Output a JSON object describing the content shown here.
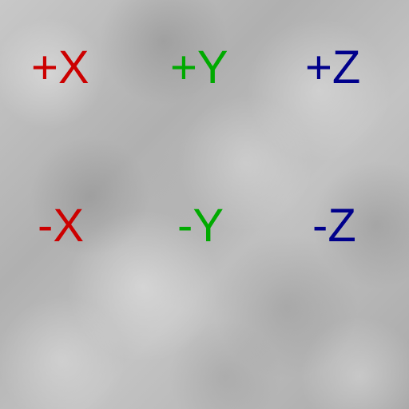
{
  "colors": {
    "x_axis": "#cc0000",
    "y_axis": "#00aa00",
    "z_axis": "#00008b",
    "background_base": "#b7b7b7"
  },
  "labels": {
    "pos_x": "+X",
    "pos_y": "+Y",
    "pos_z": "+Z",
    "neg_x": "-X",
    "neg_y": "-Y",
    "neg_z": "-Z"
  }
}
